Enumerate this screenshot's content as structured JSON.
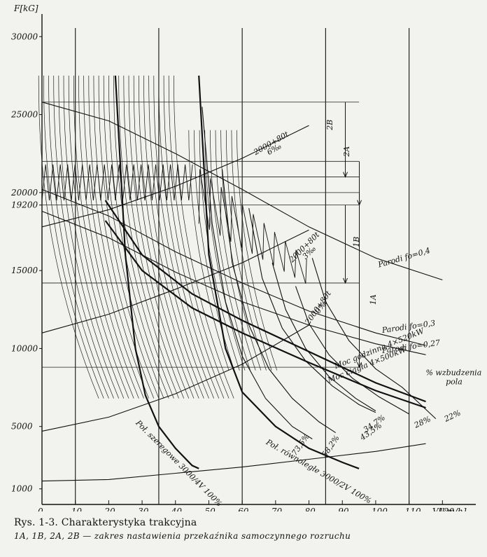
{
  "chart_data": {
    "type": "line",
    "xlabel": "V[km/h]",
    "ylabel": "F[kG]",
    "xlim": [
      0,
      130
    ],
    "ylim": [
      0,
      31000
    ],
    "x_ticks": [
      0,
      10,
      20,
      30,
      40,
      50,
      60,
      70,
      80,
      90,
      100,
      110,
      120
    ],
    "y_ticks": [
      1000,
      5000,
      10000,
      15000,
      19200,
      20000,
      25000,
      30000
    ],
    "grid_verticals": [
      10,
      35,
      60,
      85,
      110
    ],
    "series": [
      {
        "name": "Poł. szeregowe 3000/4V 100%",
        "x": [
          22,
          25,
          28,
          31,
          35,
          40,
          45,
          47
        ],
        "y": [
          27500,
          16000,
          10000,
          7000,
          5000,
          3600,
          2500,
          2300
        ]
      },
      {
        "name": "Poł. równoległe 3000/2V 100%",
        "x": [
          47,
          50,
          55,
          60,
          70,
          80,
          90,
          95
        ],
        "y": [
          27500,
          16000,
          10000,
          7200,
          5000,
          3600,
          2700,
          2300
        ]
      },
      {
        "name": "73,5%",
        "x": [
          48,
          51,
          55,
          60,
          67,
          75,
          81
        ],
        "y": [
          25500,
          18000,
          13000,
          9500,
          6800,
          5000,
          4200
        ]
      },
      {
        "name": "58,2%",
        "x": [
          54,
          57,
          62,
          68,
          75,
          83,
          88
        ],
        "y": [
          21500,
          15500,
          11500,
          8700,
          6800,
          5300,
          4600
        ]
      },
      {
        "name": "34,7%",
        "x": [
          69,
          73,
          79,
          86,
          94,
          100
        ],
        "y": [
          15500,
          12500,
          10000,
          8200,
          6800,
          6000
        ]
      },
      {
        "name": "43,5%",
        "x": [
          62,
          66,
          72,
          79,
          87,
          95,
          100
        ],
        "y": [
          19000,
          14500,
          11300,
          9200,
          7600,
          6400,
          5900
        ]
      },
      {
        "name": "28%",
        "x": [
          76,
          80,
          86,
          93,
          101,
          110
        ],
        "y": [
          14000,
          11600,
          9600,
          8100,
          6900,
          5800
        ]
      },
      {
        "name": "22%",
        "x": [
          81,
          85,
          92,
          100,
          108,
          118
        ],
        "y": [
          15800,
          13000,
          10500,
          8700,
          7500,
          5500
        ]
      },
      {
        "name": "Moc godzinna 4×520kW",
        "x": [
          19,
          30,
          45,
          60,
          80,
          100,
          115
        ],
        "y": [
          19500,
          16000,
          13500,
          11800,
          9800,
          7800,
          6600
        ]
      },
      {
        "name": "Moc ciągła 4×500kW",
        "x": [
          19,
          30,
          45,
          60,
          80,
          100,
          115
        ],
        "y": [
          18200,
          15000,
          12600,
          11000,
          9100,
          7300,
          6200
        ]
      },
      {
        "name": "Parodi fo=0,4",
        "x": [
          0,
          20,
          40,
          60,
          80,
          100,
          120
        ],
        "y": [
          25800,
          24600,
          22500,
          20200,
          17800,
          15800,
          14400
        ]
      },
      {
        "name": "Parodi fo=0,3",
        "x": [
          0,
          20,
          40,
          60,
          80,
          100,
          115
        ],
        "y": [
          20200,
          18500,
          16200,
          14200,
          12400,
          11000,
          10200
        ]
      },
      {
        "name": "Parodi fo=0,27",
        "x": [
          0,
          20,
          40,
          60,
          80,
          100,
          115
        ],
        "y": [
          18800,
          17100,
          14900,
          13000,
          11500,
          10300,
          9600
        ]
      },
      {
        "name": "2000+80t 6‰",
        "x": [
          0,
          20,
          40,
          60,
          80
        ],
        "y": [
          17800,
          18900,
          20400,
          22200,
          24300
        ]
      },
      {
        "name": "2000+80t 3‰",
        "x": [
          0,
          20,
          40,
          60,
          80
        ],
        "y": [
          11000,
          12200,
          13800,
          15500,
          17600
        ]
      },
      {
        "name": "2000+80t 0‰",
        "x": [
          0,
          20,
          40,
          60,
          80
        ],
        "y": [
          4700,
          5600,
          7100,
          9000,
          11500
        ]
      },
      {
        "name": "",
        "x": [
          0,
          20,
          40,
          60,
          80,
          100,
          115
        ],
        "y": [
          1500,
          1600,
          2000,
          2400,
          2900,
          3400,
          3900
        ]
      }
    ]
  },
  "annotations": {
    "range_labels": [
      "2B",
      "2A",
      "1B",
      "1A"
    ],
    "pct_header": [
      "% wzbudzenia",
      "pola"
    ],
    "f_labels": [
      "Parodi fo=0,4",
      "Parodi fo=0,3",
      "Parodi fo=0,27"
    ],
    "moc_labels": [
      "Moc godzinna 4×520kW",
      "Moc ciągła 4×500kW"
    ],
    "incline_labels": [
      [
        "2000+80t",
        "6‰"
      ],
      [
        "2000+80t",
        "3‰"
      ],
      [
        "2000+80t",
        "0‰"
      ]
    ],
    "pct_labels": [
      "34,7%",
      "43,5%",
      "28%",
      "22%",
      "73,5%",
      "58,2%"
    ],
    "series_labels": [
      "Poł. szeregowe 3000/4V 100%",
      "Poł. równoległe 3000/2V 100%"
    ]
  },
  "caption": {
    "title": "Rys. 1-3. Charakterystyka trakcyjna",
    "subtitle": "1A, 1B, 2A, 2B — zakres nastawienia przekaźnika samoczynnego rozruchu"
  },
  "colors": {
    "ink": "#111111",
    "paper": "#f2f2ef"
  }
}
